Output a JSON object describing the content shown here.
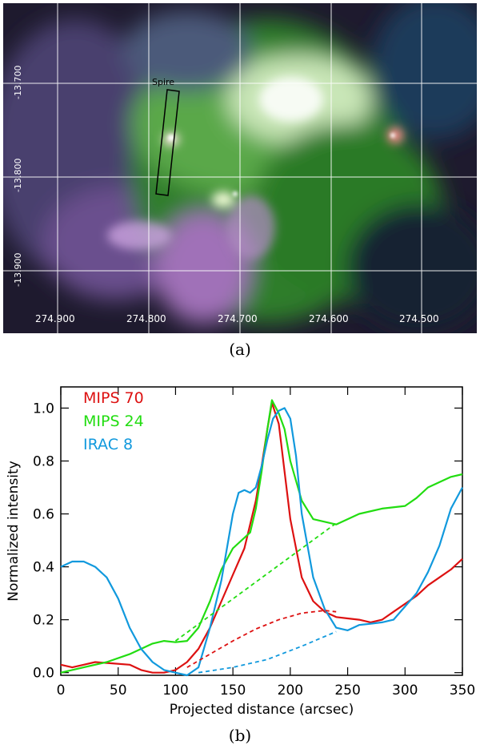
{
  "panel_a": {
    "caption": "(a)",
    "box_label": "Spire",
    "y_ticks": [
      "-13.700",
      "-13.800",
      "-13.900"
    ],
    "x_ticks": [
      "274.900",
      "274.800",
      "274.700",
      "274.600",
      "274.500"
    ]
  },
  "panel_b": {
    "caption": "(b)"
  },
  "chart_data": [
    {
      "type": "image",
      "title": "",
      "xlabel": "",
      "ylabel": "",
      "x_ticks": [
        "274.900",
        "274.800",
        "274.700",
        "274.600",
        "274.500"
      ],
      "y_ticks": [
        "-13.700",
        "-13.800",
        "-13.900"
      ],
      "annotation": "Spire"
    },
    {
      "type": "line",
      "xlabel": "Projected distance (arcsec)",
      "ylabel": "Normalized intensity",
      "xlim": [
        0,
        350
      ],
      "ylim": [
        -0.01,
        1.08
      ],
      "x_ticks": [
        0,
        50,
        100,
        150,
        200,
        250,
        300,
        350
      ],
      "y_ticks": [
        0.0,
        0.2,
        0.4,
        0.6,
        0.8,
        1.0
      ],
      "y_tick_labels": [
        "0.0",
        "0.2",
        "0.4",
        "0.6",
        "0.8",
        "1.0"
      ],
      "legend": [
        "MIPS 70",
        "MIPS 24",
        "IRAC 8"
      ],
      "series": [
        {
          "name": "MIPS 70",
          "color": "#dd1111",
          "x": [
            0,
            10,
            20,
            30,
            45,
            60,
            70,
            80,
            90,
            100,
            110,
            120,
            130,
            140,
            150,
            160,
            170,
            175,
            180,
            184,
            190,
            195,
            200,
            210,
            220,
            230,
            240,
            250,
            260,
            270,
            280,
            290,
            300,
            310,
            320,
            330,
            340,
            350
          ],
          "values": [
            0.03,
            0.02,
            0.03,
            0.04,
            0.035,
            0.03,
            0.01,
            0.0,
            0.0,
            0.01,
            0.04,
            0.09,
            0.17,
            0.27,
            0.37,
            0.47,
            0.65,
            0.78,
            0.92,
            1.02,
            0.94,
            0.76,
            0.58,
            0.36,
            0.27,
            0.23,
            0.21,
            0.205,
            0.2,
            0.19,
            0.2,
            0.23,
            0.26,
            0.29,
            0.33,
            0.36,
            0.39,
            0.43
          ]
        },
        {
          "name": "MIPS 24",
          "color": "#22dd11",
          "x": [
            0,
            20,
            40,
            60,
            70,
            80,
            90,
            100,
            110,
            120,
            130,
            140,
            150,
            160,
            165,
            170,
            175,
            180,
            184,
            190,
            195,
            200,
            210,
            220,
            240,
            260,
            280,
            300,
            310,
            320,
            330,
            340,
            350
          ],
          "values": [
            0.0,
            0.02,
            0.04,
            0.07,
            0.09,
            0.11,
            0.12,
            0.115,
            0.12,
            0.17,
            0.27,
            0.39,
            0.47,
            0.51,
            0.53,
            0.62,
            0.76,
            0.92,
            1.03,
            0.98,
            0.92,
            0.8,
            0.65,
            0.58,
            0.56,
            0.6,
            0.62,
            0.63,
            0.66,
            0.7,
            0.72,
            0.74,
            0.75
          ]
        },
        {
          "name": "IRAC 8",
          "color": "#1199dd",
          "x": [
            0,
            10,
            20,
            30,
            40,
            50,
            60,
            70,
            80,
            90,
            100,
            110,
            120,
            130,
            140,
            150,
            155,
            160,
            165,
            170,
            175,
            180,
            185,
            190,
            195,
            200,
            205,
            210,
            220,
            230,
            240,
            250,
            260,
            270,
            280,
            290,
            300,
            310,
            320,
            330,
            340,
            350
          ],
          "values": [
            0.4,
            0.42,
            0.42,
            0.4,
            0.36,
            0.28,
            0.17,
            0.09,
            0.04,
            0.01,
            0.0,
            -0.01,
            0.02,
            0.17,
            0.35,
            0.6,
            0.68,
            0.69,
            0.68,
            0.7,
            0.78,
            0.88,
            0.96,
            0.99,
            1.0,
            0.96,
            0.82,
            0.6,
            0.36,
            0.24,
            0.17,
            0.16,
            0.18,
            0.185,
            0.19,
            0.2,
            0.25,
            0.3,
            0.38,
            0.48,
            0.62,
            0.7
          ]
        },
        {
          "name": "MIPS 24 baseline",
          "color": "#22dd11",
          "dashed": true,
          "x": [
            100,
            240
          ],
          "values": [
            0.12,
            0.565
          ]
        },
        {
          "name": "MIPS 70 baseline",
          "color": "#dd1111",
          "dashed": true,
          "x": [
            110,
            130,
            150,
            170,
            190,
            210,
            230,
            240
          ],
          "values": [
            0.02,
            0.07,
            0.12,
            0.165,
            0.2,
            0.225,
            0.235,
            0.23
          ]
        },
        {
          "name": "IRAC 8 baseline",
          "color": "#1199dd",
          "dashed": true,
          "x": [
            120,
            150,
            180,
            210,
            240
          ],
          "values": [
            0.0,
            0.02,
            0.05,
            0.1,
            0.155
          ]
        }
      ]
    }
  ]
}
